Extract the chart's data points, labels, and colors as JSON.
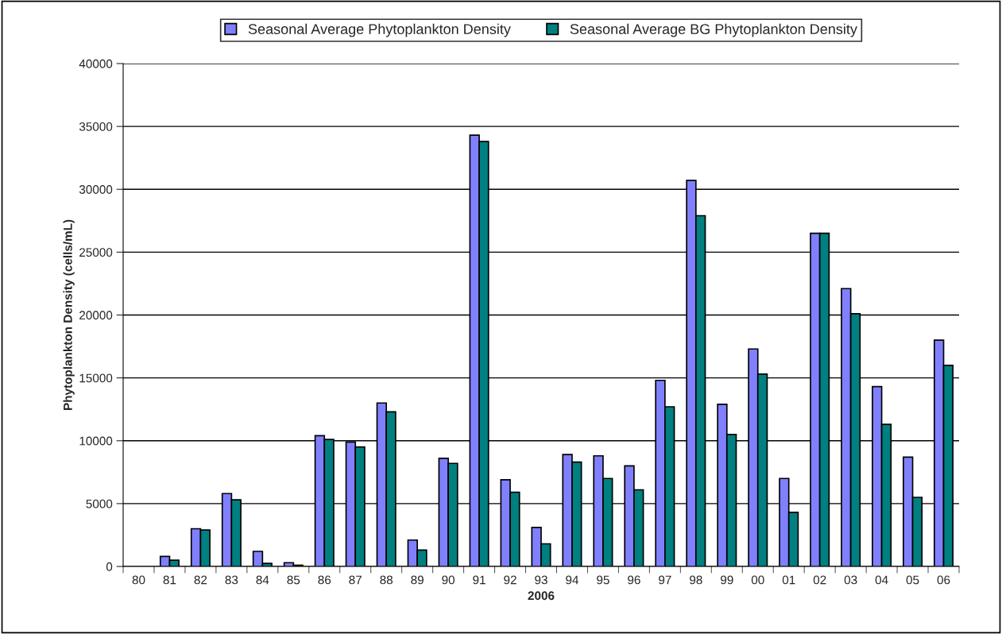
{
  "chart_data": {
    "type": "bar",
    "xlabel": "2006",
    "ylabel": "Phytoplankton Density (cells/mL)",
    "categories": [
      "80",
      "81",
      "82",
      "83",
      "84",
      "85",
      "86",
      "87",
      "88",
      "89",
      "90",
      "91",
      "92",
      "93",
      "94",
      "95",
      "96",
      "97",
      "98",
      "99",
      "00",
      "01",
      "02",
      "03",
      "04",
      "05",
      "06"
    ],
    "series": [
      {
        "name": "Seasonal Average Phytoplankton Density",
        "color": "#8080ff",
        "values": [
          null,
          800,
          3000,
          5800,
          1200,
          300,
          10400,
          9900,
          13000,
          2100,
          8600,
          34300,
          6900,
          3100,
          8900,
          8800,
          8000,
          14800,
          30700,
          12900,
          17300,
          7000,
          26500,
          22100,
          14300,
          8700,
          18000
        ]
      },
      {
        "name": "Seasonal Average BG Phytoplankton Density",
        "color": "#008080",
        "values": [
          null,
          500,
          2900,
          5300,
          250,
          100,
          10100,
          9500,
          12300,
          1300,
          8200,
          33800,
          5900,
          1800,
          8300,
          7000,
          6100,
          12700,
          27900,
          10500,
          15300,
          4300,
          26500,
          20100,
          11300,
          5500,
          16000
        ]
      }
    ],
    "ylim": [
      0,
      40000
    ],
    "yticks": [
      0,
      5000,
      10000,
      15000,
      20000,
      25000,
      30000,
      35000,
      40000
    ],
    "grid": "y",
    "legend": "top"
  }
}
